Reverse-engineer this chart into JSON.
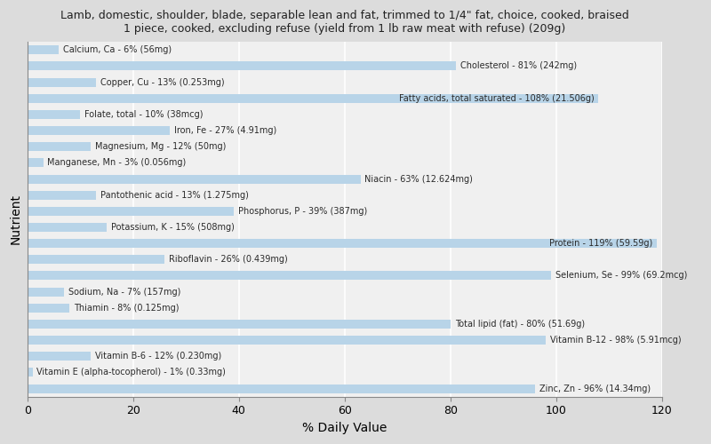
{
  "title": "Lamb, domestic, shoulder, blade, separable lean and fat, trimmed to 1/4\" fat, choice, cooked, braised\n1 piece, cooked, excluding refuse (yield from 1 lb raw meat with refuse) (209g)",
  "xlabel": "% Daily Value",
  "ylabel": "Nutrient",
  "xlim": [
    0,
    120
  ],
  "xticks": [
    0,
    20,
    40,
    60,
    80,
    100,
    120
  ],
  "fig_bg": "#dcdcdc",
  "plot_bg": "#f0f0f0",
  "bar_color": "#b8d4e8",
  "grid_color": "#ffffff",
  "nutrients": [
    {
      "label": "Calcium, Ca - 6% (56mg)",
      "value": 6
    },
    {
      "label": "Cholesterol - 81% (242mg)",
      "value": 81
    },
    {
      "label": "Copper, Cu - 13% (0.253mg)",
      "value": 13
    },
    {
      "label": "Fatty acids, total saturated - 108% (21.506g)",
      "value": 108
    },
    {
      "label": "Folate, total - 10% (38mcg)",
      "value": 10
    },
    {
      "label": "Iron, Fe - 27% (4.91mg)",
      "value": 27
    },
    {
      "label": "Magnesium, Mg - 12% (50mg)",
      "value": 12
    },
    {
      "label": "Manganese, Mn - 3% (0.056mg)",
      "value": 3
    },
    {
      "label": "Niacin - 63% (12.624mg)",
      "value": 63
    },
    {
      "label": "Pantothenic acid - 13% (1.275mg)",
      "value": 13
    },
    {
      "label": "Phosphorus, P - 39% (387mg)",
      "value": 39
    },
    {
      "label": "Potassium, K - 15% (508mg)",
      "value": 15
    },
    {
      "label": "Protein - 119% (59.59g)",
      "value": 119
    },
    {
      "label": "Riboflavin - 26% (0.439mg)",
      "value": 26
    },
    {
      "label": "Selenium, Se - 99% (69.2mcg)",
      "value": 99
    },
    {
      "label": "Sodium, Na - 7% (157mg)",
      "value": 7
    },
    {
      "label": "Thiamin - 8% (0.125mg)",
      "value": 8
    },
    {
      "label": "Total lipid (fat) - 80% (51.69g)",
      "value": 80
    },
    {
      "label": "Vitamin B-12 - 98% (5.91mcg)",
      "value": 98
    },
    {
      "label": "Vitamin B-6 - 12% (0.230mg)",
      "value": 12
    },
    {
      "label": "Vitamin E (alpha-tocopherol) - 1% (0.33mg)",
      "value": 1
    },
    {
      "label": "Zinc, Zn - 96% (14.34mg)",
      "value": 96
    }
  ]
}
